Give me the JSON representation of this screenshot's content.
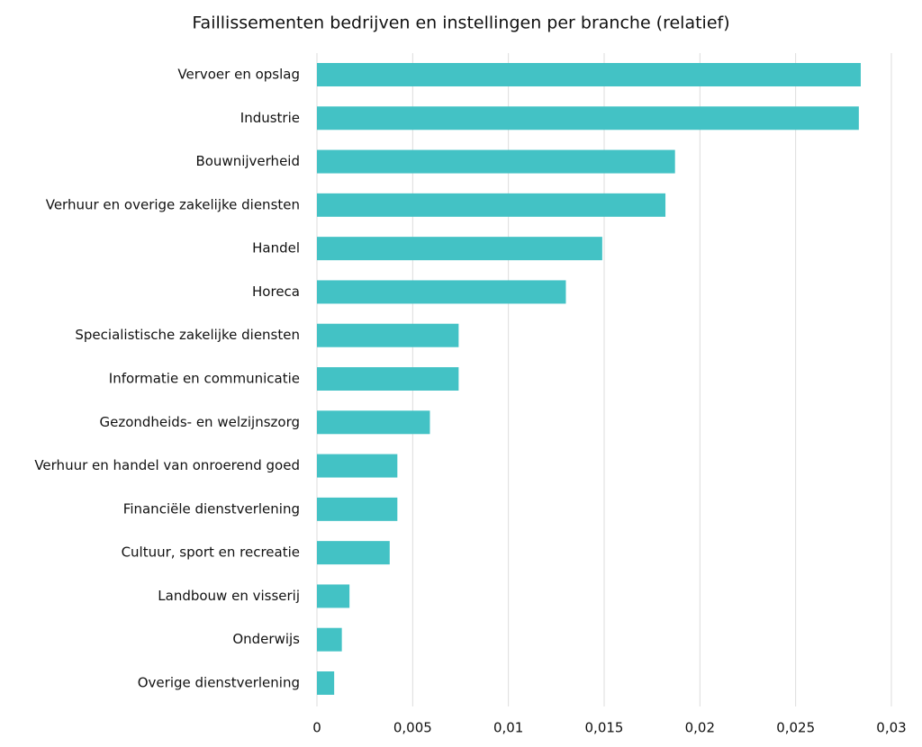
{
  "chart_data": {
    "type": "bar",
    "orientation": "horizontal",
    "title": "Faillissementen bedrijven en instellingen per branche (relatief)",
    "categories": [
      "Vervoer en opslag",
      "Industrie",
      "Bouwnijverheid",
      "Verhuur en overige zakelijke diensten",
      "Handel",
      "Horeca",
      "Specialistische zakelijke diensten",
      "Informatie en communicatie",
      "Gezondheids- en welzijnszorg",
      "Verhuur en handel van onroerend goed",
      "Financiële dienstverlening",
      "Cultuur, sport en recreatie",
      "Landbouw en visserij",
      "Onderwijs",
      "Overige dienstverlening"
    ],
    "values": [
      0.0284,
      0.0283,
      0.0187,
      0.0182,
      0.0149,
      0.013,
      0.0074,
      0.0074,
      0.0059,
      0.0042,
      0.0042,
      0.0038,
      0.0017,
      0.0013,
      0.0009
    ],
    "color": "#43c2c5",
    "xlim": [
      0,
      0.03
    ],
    "xticks": [
      0,
      {
        "value": 0.005,
        "label": "0,005"
      },
      {
        "value": 0.01,
        "label": "0,01"
      },
      {
        "value": 0.015,
        "label": "0,015"
      },
      {
        "value": 0.02,
        "label": "0,02"
      },
      {
        "value": 0.025,
        "label": "0,025"
      },
      {
        "value": 0.03,
        "label": "0,03"
      }
    ],
    "grid": true
  }
}
